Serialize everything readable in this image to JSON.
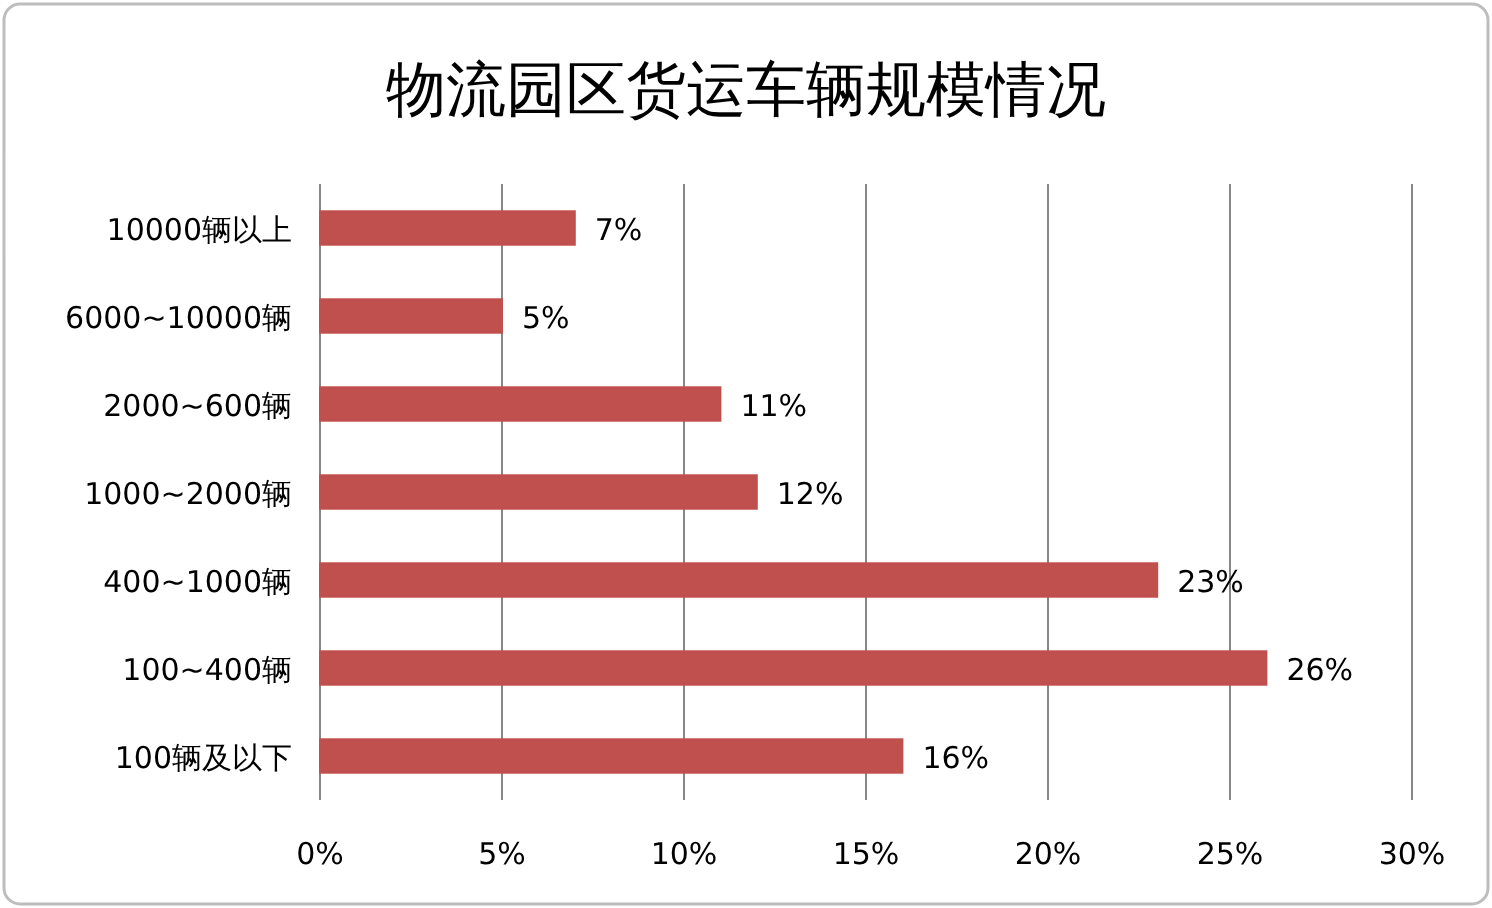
{
  "chart_data": {
    "type": "bar",
    "orientation": "horizontal",
    "title": "物流园区货运车辆规模情况",
    "categories": [
      "10000辆以上",
      "6000~10000辆",
      "2000~600辆",
      "1000~2000辆",
      "400~1000辆",
      "100~400辆",
      "100辆及以下"
    ],
    "values": [
      7,
      5,
      11,
      12,
      23,
      26,
      16
    ],
    "value_labels": [
      "7%",
      "5%",
      "11%",
      "12%",
      "23%",
      "26%",
      "16%"
    ],
    "color": "#c0504d",
    "xlim": [
      0,
      30
    ],
    "xticks": [
      {
        "value": 0,
        "label": "0%"
      },
      {
        "value": 5,
        "label": "5%"
      },
      {
        "value": 10,
        "label": "10%"
      },
      {
        "value": 15,
        "label": "15%"
      },
      {
        "value": 20,
        "label": "20%"
      },
      {
        "value": 25,
        "label": "25%"
      },
      {
        "value": 30,
        "label": "30%"
      }
    ],
    "grid": "x"
  }
}
